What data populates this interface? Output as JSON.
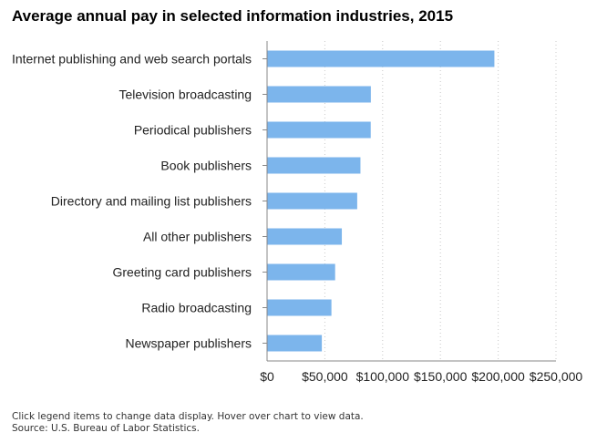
{
  "chart_data": {
    "type": "bar",
    "orientation": "horizontal",
    "title": "Average annual pay in selected information industries, 2015",
    "categories": [
      "Internet publishing and web search portals",
      "Television broadcasting",
      "Periodical publishers",
      "Book publishers",
      "Directory and mailing list publishers",
      "All other publishers",
      "Greeting card publishers",
      "Radio broadcasting",
      "Newspaper publishers"
    ],
    "values": [
      196700,
      89800,
      89700,
      80800,
      78000,
      64700,
      58900,
      55700,
      47400
    ],
    "xlim": [
      0,
      250000
    ],
    "x_ticks": [
      0,
      50000,
      100000,
      150000,
      200000,
      250000
    ],
    "x_tick_labels": [
      "$0",
      "$50,000",
      "$100,000",
      "$150,000",
      "$200,000",
      "$250,000"
    ],
    "xlabel": "",
    "ylabel": "",
    "grid": "vertical dotted",
    "bar_color": "#7cb5ec"
  },
  "footer": {
    "line1": "Click legend items to change data display. Hover over chart to view data.",
    "line2": "Source: U.S. Bureau of Labor Statistics."
  }
}
